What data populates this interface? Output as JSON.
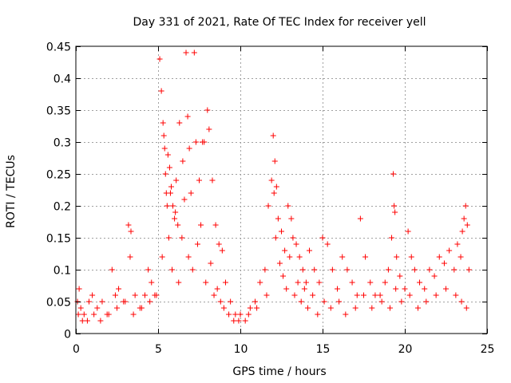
{
  "chart_data": {
    "type": "scatter",
    "title": "Day 331 of 2021, Rate Of TEC Index for receiver yell",
    "xlabel": "GPS time / hours",
    "ylabel": "ROTI / TECUs",
    "xlim": [
      0,
      25
    ],
    "ylim": [
      0,
      0.45
    ],
    "grid": true,
    "marker": "+",
    "series_color": "#ff0000",
    "x_ticks": [
      0,
      5,
      10,
      15,
      20,
      25
    ],
    "x_tick_labels": [
      "0",
      "5",
      "10",
      "15",
      "20",
      "25"
    ],
    "y_ticks": [
      0,
      0.05,
      0.1,
      0.15,
      0.2,
      0.25,
      0.3,
      0.35,
      0.4,
      0.45
    ],
    "y_tick_labels": [
      "0",
      "0.05",
      "0.1",
      "0.15",
      "0.2",
      "0.25",
      "0.3",
      "0.35",
      "0.4",
      "0.45"
    ],
    "series": [
      {
        "name": "ROTI",
        "x": [
          0.1,
          0.2,
          0.3,
          0.5,
          0.8,
          1.0,
          1.3,
          1.6,
          1.9,
          2.2,
          2.4,
          2.6,
          2.9,
          3.2,
          3.3,
          3.35,
          3.6,
          3.9,
          4.2,
          4.4,
          4.6,
          4.8,
          5.1,
          5.2,
          5.3,
          5.35,
          5.4,
          5.45,
          5.5,
          5.6,
          5.7,
          5.8,
          5.9,
          6.0,
          6.1,
          6.2,
          6.3,
          6.5,
          6.7,
          6.8,
          6.9,
          7.0,
          7.2,
          7.3,
          7.5,
          7.7,
          7.8,
          8.0,
          8.1,
          8.3,
          8.5,
          8.7,
          8.9,
          9.1,
          9.4,
          9.7,
          10.0,
          10.3,
          10.6,
          10.9,
          11.2,
          11.5,
          11.7,
          11.9,
          12.0,
          12.1,
          12.2,
          12.3,
          12.5,
          12.7,
          12.9,
          13.1,
          13.2,
          13.4,
          13.6,
          13.8,
          14.0,
          14.2,
          14.5,
          14.8,
          15.0,
          15.3,
          15.6,
          15.9,
          16.2,
          16.5,
          16.8,
          17.1,
          17.3,
          17.6,
          17.9,
          18.2,
          18.5,
          18.8,
          19.0,
          19.2,
          19.3,
          19.35,
          19.4,
          19.5,
          19.7,
          20.0,
          20.2,
          20.4,
          20.6,
          20.9,
          21.2,
          21.5,
          21.8,
          22.1,
          22.4,
          22.7,
          23.0,
          23.2,
          23.4,
          23.5,
          23.6,
          23.7,
          23.8,
          23.9,
          0.15,
          0.4,
          0.7,
          1.1,
          1.5,
          2.0,
          2.5,
          3.0,
          3.5,
          4.0,
          4.5,
          4.9,
          5.25,
          5.55,
          5.65,
          5.75,
          5.85,
          6.05,
          6.25,
          6.45,
          6.6,
          6.85,
          7.1,
          7.4,
          7.6,
          7.9,
          8.2,
          8.4,
          8.6,
          8.8,
          9.0,
          9.3,
          9.6,
          9.9,
          10.5,
          11.0,
          11.6,
          12.05,
          12.15,
          12.4,
          12.6,
          12.8,
          13.0,
          13.3,
          13.5,
          13.7,
          13.9,
          14.1,
          14.4,
          14.7,
          15.1,
          15.5,
          16.0,
          16.4,
          17.0,
          17.5,
          18.0,
          18.6,
          19.1,
          19.45,
          19.8,
          20.3,
          20.8,
          21.3,
          21.9,
          22.5,
          23.1,
          23.45,
          23.75
        ],
        "y": [
          0.05,
          0.07,
          0.04,
          0.03,
          0.05,
          0.06,
          0.04,
          0.05,
          0.03,
          0.1,
          0.06,
          0.07,
          0.05,
          0.17,
          0.12,
          0.16,
          0.06,
          0.04,
          0.06,
          0.1,
          0.08,
          0.06,
          0.43,
          0.38,
          0.33,
          0.31,
          0.29,
          0.25,
          0.22,
          0.28,
          0.26,
          0.23,
          0.2,
          0.18,
          0.24,
          0.17,
          0.33,
          0.27,
          0.44,
          0.34,
          0.29,
          0.22,
          0.44,
          0.3,
          0.24,
          0.3,
          0.3,
          0.35,
          0.32,
          0.24,
          0.17,
          0.14,
          0.13,
          0.08,
          0.05,
          0.03,
          0.03,
          0.02,
          0.04,
          0.05,
          0.08,
          0.1,
          0.2,
          0.24,
          0.31,
          0.27,
          0.23,
          0.18,
          0.16,
          0.13,
          0.2,
          0.18,
          0.15,
          0.14,
          0.12,
          0.1,
          0.08,
          0.13,
          0.1,
          0.08,
          0.15,
          0.14,
          0.1,
          0.07,
          0.12,
          0.1,
          0.08,
          0.06,
          0.18,
          0.12,
          0.08,
          0.06,
          0.06,
          0.08,
          0.1,
          0.15,
          0.25,
          0.2,
          0.19,
          0.12,
          0.09,
          0.07,
          0.16,
          0.12,
          0.1,
          0.08,
          0.07,
          0.1,
          0.09,
          0.12,
          0.11,
          0.13,
          0.1,
          0.14,
          0.12,
          0.16,
          0.18,
          0.2,
          0.17,
          0.1,
          0.03,
          0.02,
          0.02,
          0.03,
          0.02,
          0.03,
          0.04,
          0.05,
          0.03,
          0.04,
          0.05,
          0.06,
          0.12,
          0.2,
          0.15,
          0.22,
          0.1,
          0.19,
          0.08,
          0.15,
          0.21,
          0.12,
          0.1,
          0.14,
          0.17,
          0.08,
          0.11,
          0.06,
          0.07,
          0.05,
          0.04,
          0.03,
          0.02,
          0.02,
          0.03,
          0.04,
          0.06,
          0.22,
          0.15,
          0.11,
          0.09,
          0.07,
          0.12,
          0.06,
          0.08,
          0.05,
          0.07,
          0.04,
          0.06,
          0.03,
          0.05,
          0.04,
          0.05,
          0.03,
          0.04,
          0.06,
          0.04,
          0.05,
          0.04,
          0.07,
          0.05,
          0.06,
          0.04,
          0.05,
          0.06,
          0.07,
          0.06,
          0.05,
          0.04
        ]
      }
    ]
  }
}
